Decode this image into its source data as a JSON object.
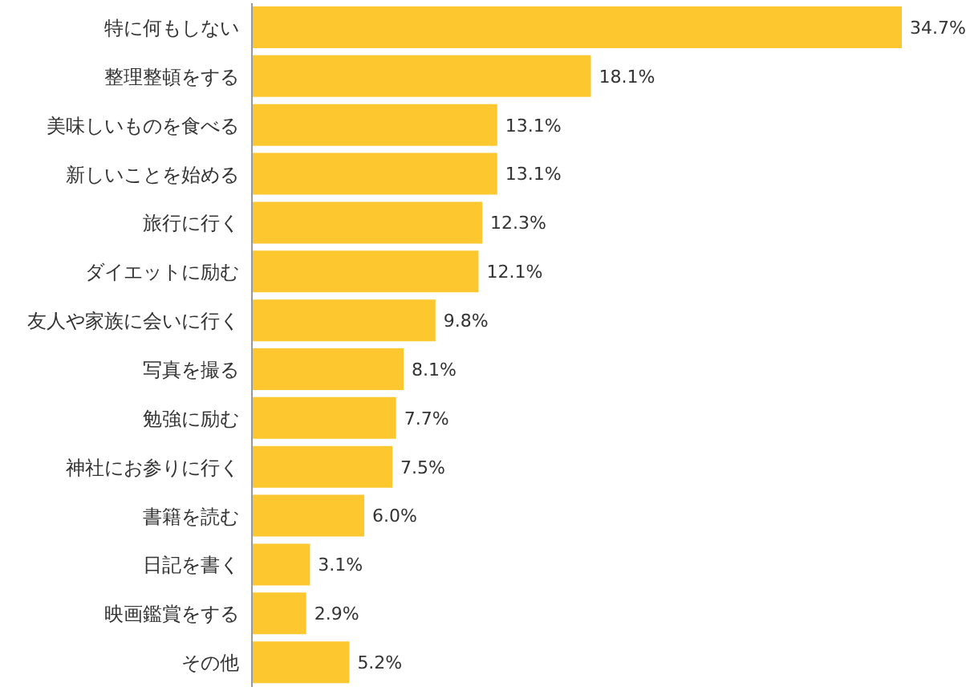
{
  "chart_data": {
    "type": "bar",
    "orientation": "horizontal",
    "categories": [
      "特に何もしない",
      "整理整頓をする",
      "美味しいものを食べる",
      "新しいことを始める",
      "旅行に行く",
      "ダイエットに励む",
      "友人や家族に会いに行く",
      "写真を撮る",
      "勉強に励む",
      "神社にお参りに行く",
      "書籍を読む",
      "日記を書く",
      "映画鑑賞をする",
      "その他"
    ],
    "values": [
      34.7,
      18.1,
      13.1,
      13.1,
      12.3,
      12.1,
      9.8,
      8.1,
      7.7,
      7.5,
      6.0,
      3.1,
      2.9,
      5.2
    ],
    "value_labels": [
      "34.7%",
      "18.1%",
      "13.1%",
      "13.1%",
      "12.3%",
      "12.1%",
      "9.8%",
      "8.1%",
      "7.7%",
      "7.5%",
      "6.0%",
      "3.1%",
      "2.9%",
      "5.2%"
    ],
    "color": "#fdc82f",
    "grid": false,
    "legend": false
  }
}
